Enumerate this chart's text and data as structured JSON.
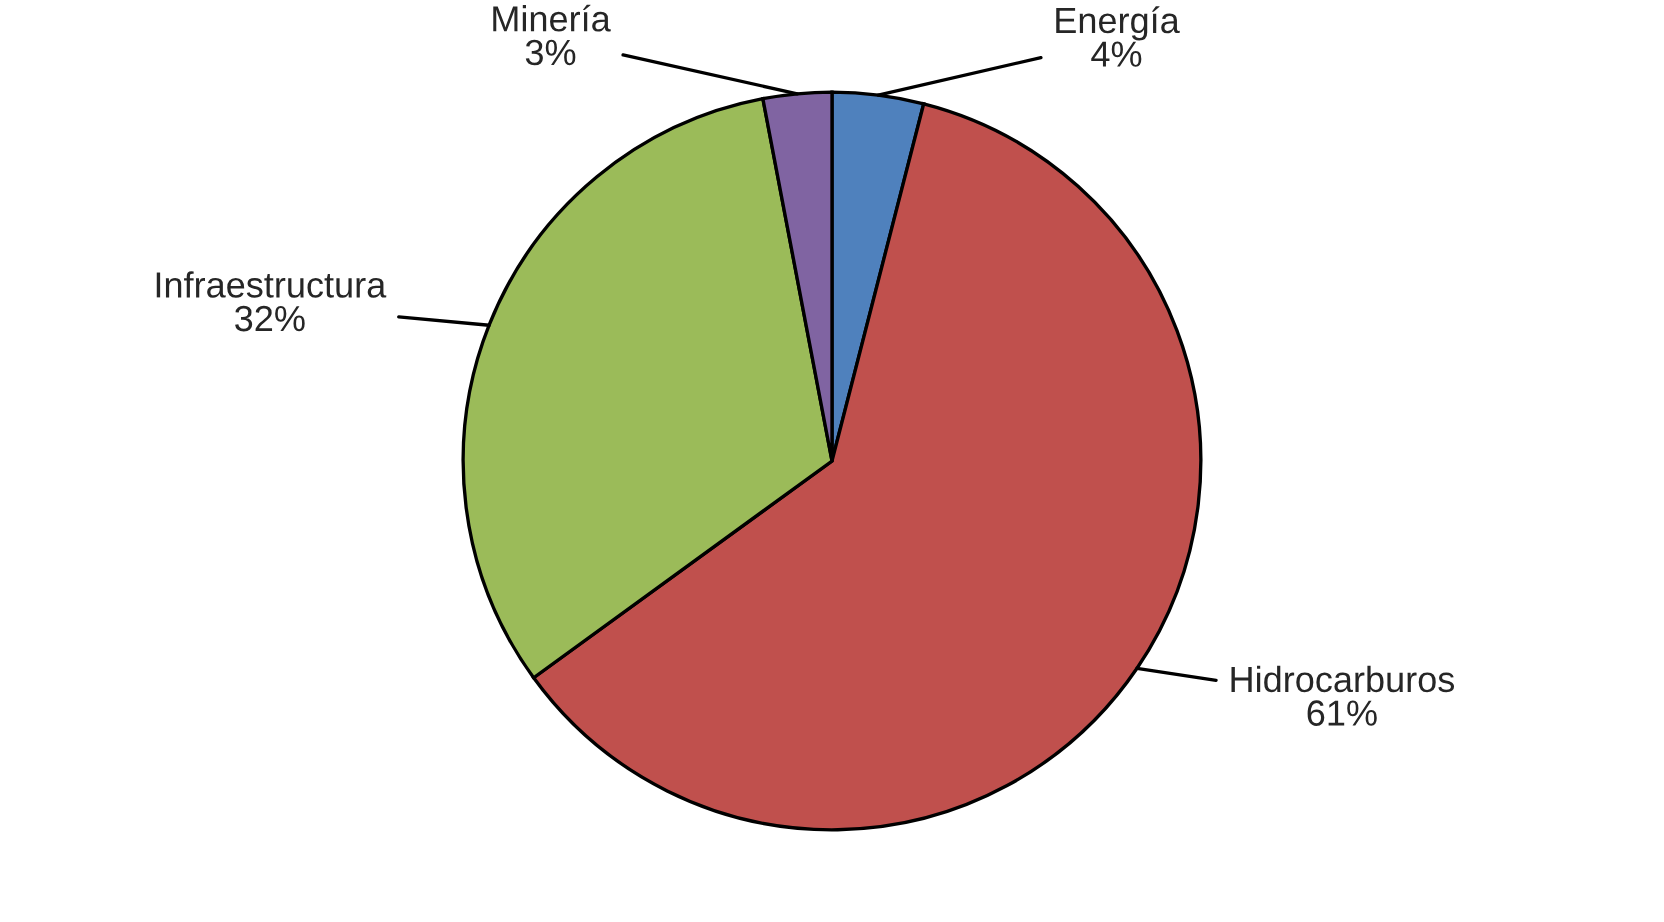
{
  "chart_data": {
    "type": "pie",
    "categories": [
      "Energía",
      "Hidrocarburos",
      "Infraestructura",
      "Minería"
    ],
    "values": [
      4,
      61,
      32,
      3
    ],
    "value_labels": [
      "4%",
      "61%",
      "32%",
      "3%"
    ],
    "colors": [
      "#4f81bd",
      "#c0504d",
      "#9bbb59",
      "#8064a2"
    ],
    "legend": false
  }
}
